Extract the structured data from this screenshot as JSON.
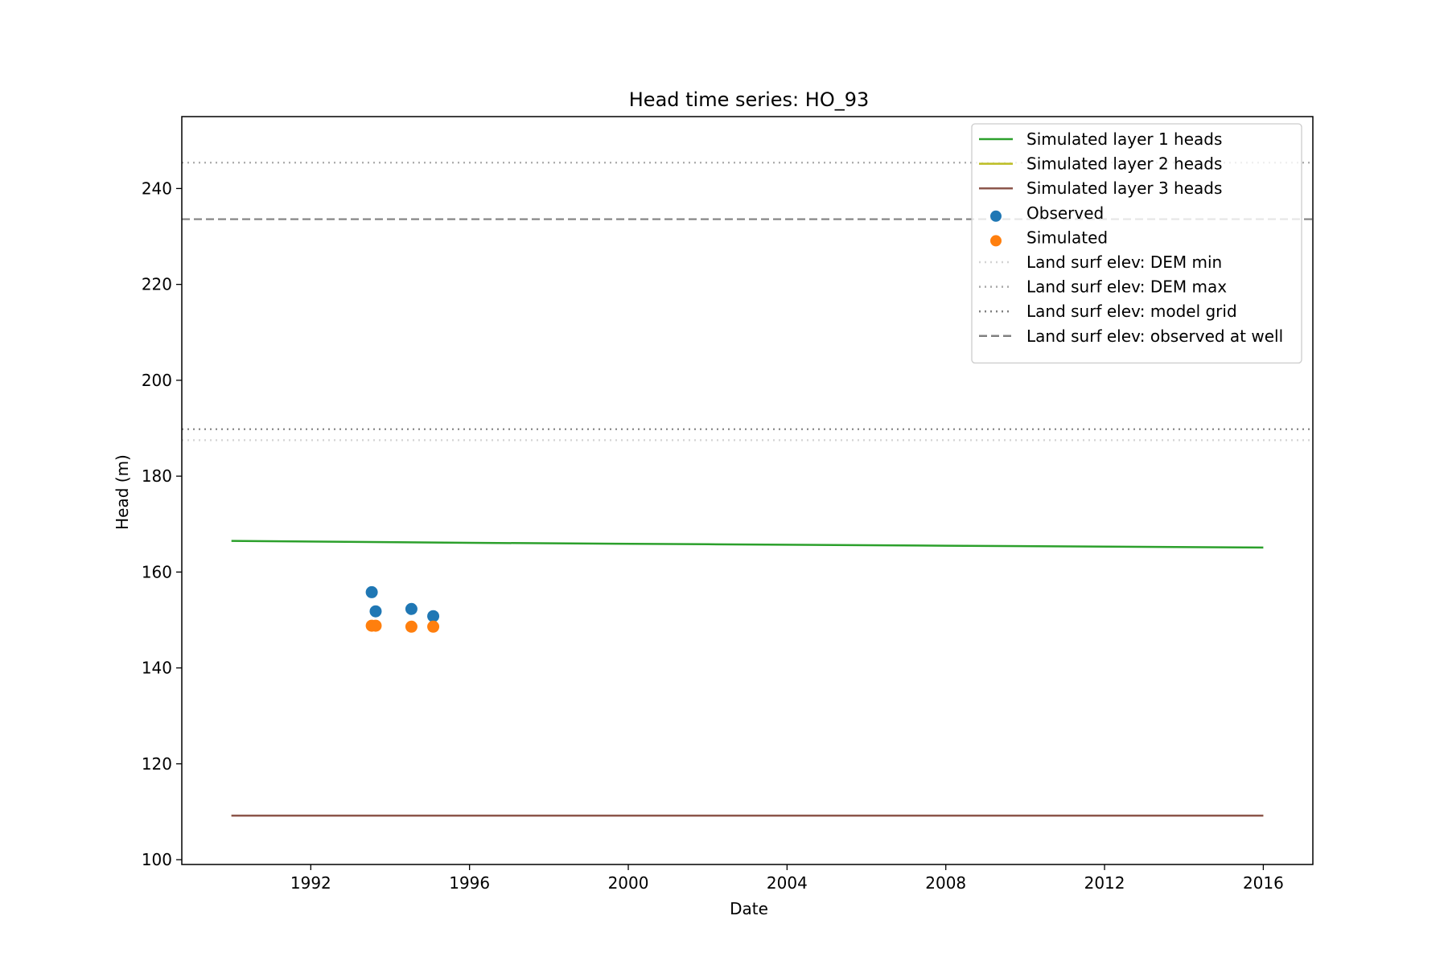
{
  "chart_data": {
    "type": "line",
    "title": "Head time series: HO_93",
    "xlabel": "Date",
    "ylabel": "Head (m)",
    "xlim": [
      "1988-10-01",
      "2017-04-01"
    ],
    "ylim": [
      99,
      255
    ],
    "x_ticks": [
      "1992",
      "1996",
      "2000",
      "2004",
      "2008",
      "2012",
      "2016"
    ],
    "y_ticks": [
      100,
      120,
      140,
      160,
      180,
      200,
      220,
      240
    ],
    "grid": false,
    "legend_position": "top-right",
    "series": [
      {
        "name": "Simulated layer 1 heads",
        "kind": "line",
        "color": "#2ca02c",
        "x": [
          "1990-01-01",
          "1996-01-01",
          "2002-01-01",
          "2008-01-01",
          "2016-01-01"
        ],
        "y": [
          166.5,
          166.1,
          165.8,
          165.5,
          165.1
        ]
      },
      {
        "name": "Simulated layer 2 heads",
        "kind": "line",
        "color": "#bcbd22",
        "x": [
          "1990-01-01",
          "2016-01-01"
        ],
        "y": [
          109.2,
          109.2
        ]
      },
      {
        "name": "Simulated layer 3 heads",
        "kind": "line",
        "color": "#8c564b",
        "x": [
          "1990-01-01",
          "2016-01-01"
        ],
        "y": [
          109.2,
          109.2
        ]
      },
      {
        "name": "Observed",
        "kind": "scatter",
        "color": "#1f77b4",
        "x": [
          "1993-07-15",
          "1993-08-20",
          "1994-07-15",
          "1995-02-01"
        ],
        "y": [
          155.8,
          151.8,
          152.3,
          150.8
        ]
      },
      {
        "name": "Simulated",
        "kind": "scatter",
        "color": "#ff7f0e",
        "x": [
          "1993-07-15",
          "1993-08-20",
          "1994-07-15",
          "1995-02-01"
        ],
        "y": [
          148.8,
          148.8,
          148.6,
          148.6
        ]
      },
      {
        "name": "Land surf elev: DEM min",
        "kind": "hline",
        "color": "#d3d3d3",
        "dash": "dotted",
        "y": 187.5
      },
      {
        "name": "Land surf elev: DEM max",
        "kind": "hline",
        "color": "#a9a9a9",
        "dash": "dotted",
        "y": 245.4
      },
      {
        "name": "Land surf elev: model grid",
        "kind": "hline",
        "color": "#808080",
        "dash": "dotted",
        "y": 189.8
      },
      {
        "name": "Land surf elev: observed at well",
        "kind": "hline",
        "color": "#808080",
        "dash": "dashed",
        "y": 233.6
      }
    ]
  }
}
